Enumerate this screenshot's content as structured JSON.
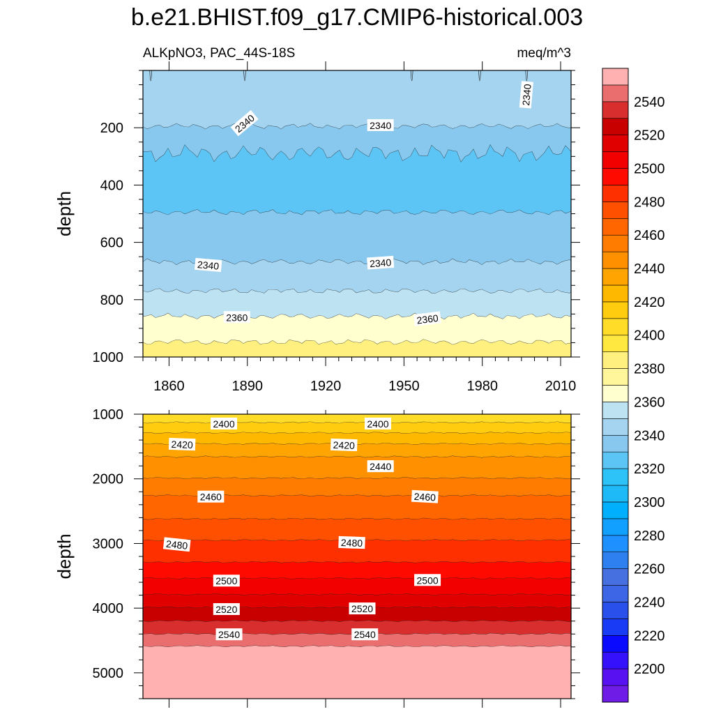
{
  "title": "b.e21.BHIST.f09_g17.CMIP6-historical.003",
  "chart_data": {
    "type": "contour",
    "variable": "ALKpNO3",
    "region": "PAC_44S-18S",
    "units": "meq/m^3",
    "ylabel": "depth",
    "x_ticks": [
      1860,
      1890,
      1920,
      1950,
      1980,
      2010
    ],
    "xlim": [
      1850,
      2014
    ],
    "panels": [
      {
        "name": "upper",
        "ylim": [
          0,
          1000
        ],
        "y_ticks": [
          200,
          400,
          600,
          800,
          1000
        ],
        "bands": [
          {
            "from": 0,
            "to": 195,
            "level": 2340
          },
          {
            "from": 195,
            "to": 290,
            "level": 2330
          },
          {
            "from": 290,
            "to": 495,
            "level": 2320
          },
          {
            "from": 495,
            "to": 668,
            "level": 2330
          },
          {
            "from": 668,
            "to": 770,
            "level": 2340
          },
          {
            "from": 770,
            "to": 858,
            "level": 2350
          },
          {
            "from": 858,
            "to": 948,
            "level": 2360
          },
          {
            "from": 948,
            "to": 1000,
            "level": 2380
          }
        ],
        "contour_labels": [
          {
            "text": "2340",
            "year": 1889,
            "depth": 185,
            "angle": 40
          },
          {
            "text": "2340",
            "year": 1941,
            "depth": 192,
            "angle": 0
          },
          {
            "text": "2340",
            "year": 1997,
            "depth": 85,
            "angle": 85
          },
          {
            "text": "2340",
            "year": 1875,
            "depth": 680,
            "angle": -5
          },
          {
            "text": "2340",
            "year": 1941,
            "depth": 672,
            "angle": 4
          },
          {
            "text": "2360",
            "year": 1886,
            "depth": 862,
            "angle": 0
          },
          {
            "text": "2360",
            "year": 1959,
            "depth": 868,
            "angle": 7
          }
        ]
      },
      {
        "name": "lower",
        "ylim": [
          1000,
          5400
        ],
        "y_ticks": [
          1000,
          2000,
          3000,
          4000,
          5000
        ],
        "bands": [
          {
            "from": 1000,
            "to": 1130,
            "level": 2400
          },
          {
            "from": 1130,
            "to": 1290,
            "level": 2410
          },
          {
            "from": 1290,
            "to": 1460,
            "level": 2420
          },
          {
            "from": 1460,
            "to": 1660,
            "level": 2430
          },
          {
            "from": 1660,
            "to": 1990,
            "level": 2440
          },
          {
            "from": 1990,
            "to": 2260,
            "level": 2450
          },
          {
            "from": 2260,
            "to": 2620,
            "level": 2460
          },
          {
            "from": 2620,
            "to": 2950,
            "level": 2470
          },
          {
            "from": 2950,
            "to": 3290,
            "level": 2480
          },
          {
            "from": 3290,
            "to": 3540,
            "level": 2490
          },
          {
            "from": 3540,
            "to": 3790,
            "level": 2500
          },
          {
            "from": 3790,
            "to": 3990,
            "level": 2510
          },
          {
            "from": 3990,
            "to": 4200,
            "level": 2520
          },
          {
            "from": 4200,
            "to": 4400,
            "level": 2530
          },
          {
            "from": 4400,
            "to": 4590,
            "level": 2540
          },
          {
            "from": 4590,
            "to": 5400,
            "level": 2550
          }
        ],
        "contour_labels": [
          {
            "text": "2400",
            "year": 1881,
            "depth": 1150,
            "angle": 0
          },
          {
            "text": "2400",
            "year": 1940,
            "depth": 1150,
            "angle": 0
          },
          {
            "text": "2420",
            "year": 1865,
            "depth": 1470,
            "angle": -2
          },
          {
            "text": "2420",
            "year": 1927,
            "depth": 1480,
            "angle": -2
          },
          {
            "text": "2440",
            "year": 1941,
            "depth": 1810,
            "angle": 0
          },
          {
            "text": "2460",
            "year": 1876,
            "depth": 2280,
            "angle": 0
          },
          {
            "text": "2460",
            "year": 1958,
            "depth": 2280,
            "angle": -3
          },
          {
            "text": "2480",
            "year": 1863,
            "depth": 3020,
            "angle": -6
          },
          {
            "text": "2480",
            "year": 1930,
            "depth": 2990,
            "angle": -2
          },
          {
            "text": "2500",
            "year": 1882,
            "depth": 3580,
            "angle": 0
          },
          {
            "text": "2500",
            "year": 1959,
            "depth": 3570,
            "angle": 0
          },
          {
            "text": "2520",
            "year": 1882,
            "depth": 4020,
            "angle": 0
          },
          {
            "text": "2520",
            "year": 1934,
            "depth": 4010,
            "angle": 0
          },
          {
            "text": "2540",
            "year": 1883,
            "depth": 4410,
            "angle": 0
          },
          {
            "text": "2540",
            "year": 1935,
            "depth": 4410,
            "angle": 0
          }
        ]
      }
    ],
    "colorbar": {
      "levels": [
        2190,
        2200,
        2210,
        2220,
        2230,
        2240,
        2250,
        2260,
        2270,
        2280,
        2290,
        2300,
        2310,
        2320,
        2330,
        2340,
        2350,
        2360,
        2370,
        2380,
        2390,
        2400,
        2410,
        2420,
        2430,
        2440,
        2450,
        2460,
        2470,
        2480,
        2490,
        2500,
        2510,
        2520,
        2530,
        2540,
        2550
      ],
      "colors": [
        "#6f1ce6",
        "#5812f2",
        "#3510fa",
        "#0a0aff",
        "#1a3bf5",
        "#2a50ec",
        "#3c66e6",
        "#4670e0",
        "#2e80f0",
        "#1e90ff",
        "#11a0ff",
        "#00b0ff",
        "#1ebaf7",
        "#2ec3f8",
        "#5cc5f5",
        "#88c8ee",
        "#a4d4f0",
        "#bde2f2",
        "#ffffcf",
        "#fff59a",
        "#fff080",
        "#ffe840",
        "#ffdc28",
        "#ffcc10",
        "#ffb800",
        "#ffa400",
        "#ff9000",
        "#ff7c00",
        "#ff6600",
        "#ff5000",
        "#ff3000",
        "#ff0a00",
        "#f20000",
        "#e00000",
        "#c80000",
        "#d92e2e",
        "#ea6e6e",
        "#ffb0b0"
      ],
      "tick_labels": [
        2200,
        2220,
        2240,
        2260,
        2280,
        2300,
        2320,
        2340,
        2360,
        2380,
        2400,
        2420,
        2440,
        2460,
        2480,
        2500,
        2520,
        2540
      ]
    }
  }
}
